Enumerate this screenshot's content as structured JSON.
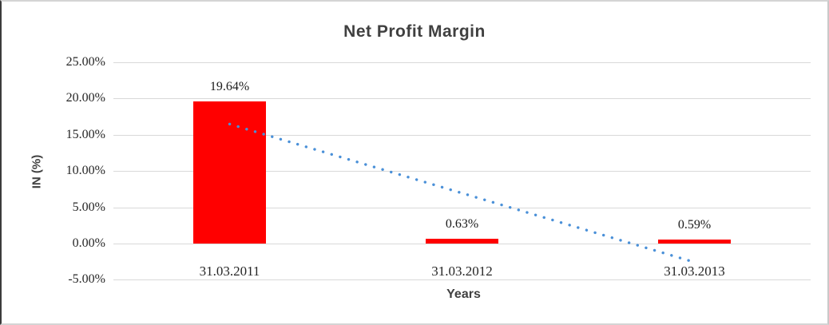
{
  "chart_data": {
    "type": "bar",
    "title": "Net Profit Margin",
    "xlabel": "Years",
    "ylabel": "IN (%)",
    "categories": [
      "31.03.2011",
      "31.03.2012",
      "31.03.2013"
    ],
    "values": [
      19.64,
      0.63,
      0.59
    ],
    "data_labels": [
      "19.64%",
      "0.63%",
      "0.59%"
    ],
    "yticks": [
      {
        "value": 25,
        "label": "25.00%"
      },
      {
        "value": 20,
        "label": "20.00%"
      },
      {
        "value": 15,
        "label": "15.00%"
      },
      {
        "value": 10,
        "label": "10.00%"
      },
      {
        "value": 5,
        "label": "5.00%"
      },
      {
        "value": 0,
        "label": "0.00%"
      },
      {
        "value": -5,
        "label": "-5.00%"
      }
    ],
    "ylim": [
      -5,
      25
    ],
    "grid": true,
    "legend": "none",
    "bar_color": "#ff0000",
    "gridline_color": "#d9d9d9",
    "trendline": {
      "type": "linear",
      "style": "dotted",
      "color": "#4a90d8",
      "start_value": 16.48,
      "end_value": -2.57
    }
  }
}
